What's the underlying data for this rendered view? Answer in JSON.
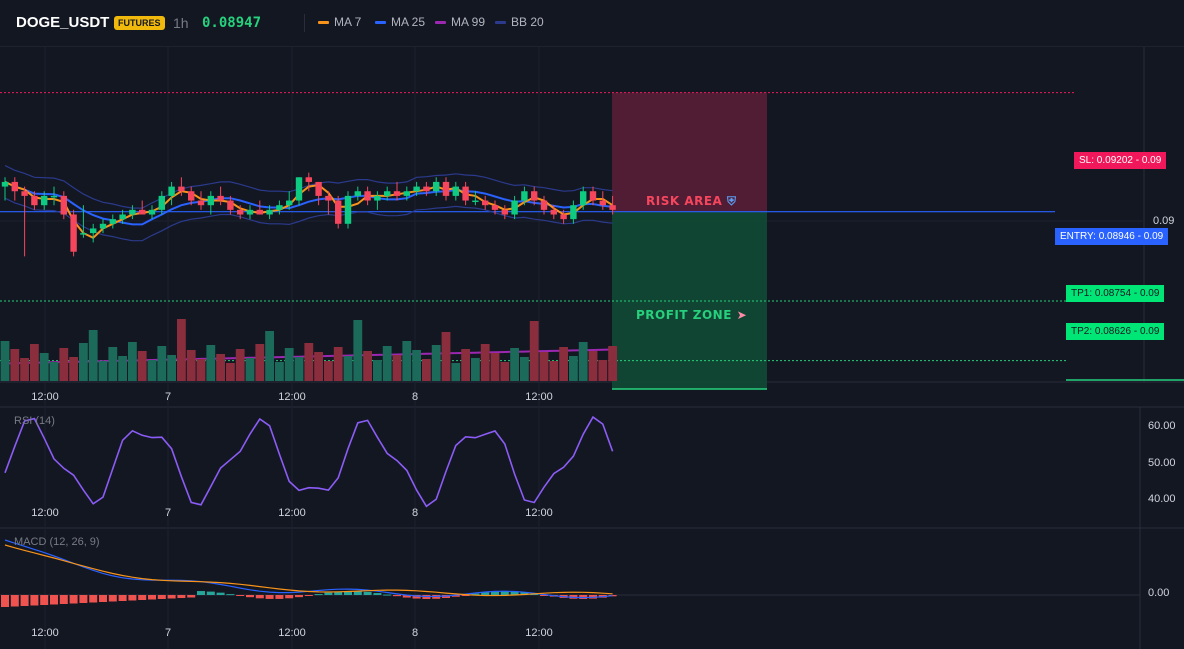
{
  "header": {
    "symbol": "DOGE_USDT",
    "badge": "FUTURES",
    "timeframe": "1h",
    "last_price": "0.08947",
    "legend": [
      {
        "label": "MA 7",
        "color": "#f7931a"
      },
      {
        "label": "MA 25",
        "color": "#2962ff"
      },
      {
        "label": "MA 99",
        "color": "#9c27b0"
      },
      {
        "label": "BB 20",
        "color": "#2b3a8c"
      }
    ]
  },
  "colors": {
    "up": "#0ecb81",
    "down": "#f6465d",
    "risk": "#7a1f3d",
    "profit": "#0f5a3c"
  },
  "annotations": {
    "risk_label": "RISK AREA",
    "risk_icon": "shield-icon",
    "profit_label": "PROFIT ZONE",
    "profit_icon": "rocket-icon"
  },
  "price_labels": {
    "sl": "SL: 0.09202",
    "entry": "ENTRY: 0.08946",
    "tp1": "TP1: 0.08754",
    "tp2": "TP2: 0.08626",
    "sl_val": "0.09",
    "entry_val": "0.09",
    "tp1_val": "0.09",
    "tp2_val": "0.09",
    "axis_tick": "0.09"
  },
  "panes": {
    "rsi_title": "RSI (14)",
    "macd_title": "MACD (12, 26, 9)"
  },
  "chart_data": {
    "type": "candlestick",
    "time_labels": [
      "12:00",
      "7",
      "12:00",
      "8",
      "12:00"
    ],
    "price_levels": {
      "sl": 0.09202,
      "entry": 0.08946,
      "tp1": 0.08754,
      "tp2": 0.08626
    },
    "candles": [
      [
        0.09,
        0.0902,
        0.0897,
        0.0901
      ],
      [
        0.0901,
        0.0902,
        0.0897,
        0.0899
      ],
      [
        0.0899,
        0.09,
        0.0885,
        0.0898
      ],
      [
        0.0898,
        0.0899,
        0.0895,
        0.0896
      ],
      [
        0.0896,
        0.0899,
        0.0895,
        0.0898
      ],
      [
        0.0898,
        0.09,
        0.0896,
        0.0898
      ],
      [
        0.0898,
        0.0899,
        0.0893,
        0.0894
      ],
      [
        0.0894,
        0.0895,
        0.0885,
        0.0886
      ],
      [
        0.089,
        0.0896,
        0.0889,
        0.089
      ],
      [
        0.089,
        0.0892,
        0.0888,
        0.0891
      ],
      [
        0.0891,
        0.0893,
        0.089,
        0.0892
      ],
      [
        0.0892,
        0.0894,
        0.0891,
        0.0893
      ],
      [
        0.0893,
        0.0895,
        0.0892,
        0.0894
      ],
      [
        0.0894,
        0.0896,
        0.0893,
        0.0895
      ],
      [
        0.0895,
        0.0897,
        0.0894,
        0.0894
      ],
      [
        0.0894,
        0.0896,
        0.0893,
        0.0895
      ],
      [
        0.0895,
        0.0899,
        0.0894,
        0.0898
      ],
      [
        0.0898,
        0.0901,
        0.0896,
        0.09
      ],
      [
        0.09,
        0.0902,
        0.0898,
        0.0899
      ],
      [
        0.0899,
        0.09,
        0.0896,
        0.0897
      ],
      [
        0.0897,
        0.0899,
        0.0895,
        0.0896
      ],
      [
        0.0896,
        0.0899,
        0.0894,
        0.0898
      ],
      [
        0.0898,
        0.09,
        0.0896,
        0.0897
      ],
      [
        0.0897,
        0.0898,
        0.0894,
        0.0895
      ],
      [
        0.0895,
        0.0896,
        0.0893,
        0.0894
      ],
      [
        0.0894,
        0.0896,
        0.0893,
        0.0895
      ],
      [
        0.0895,
        0.0897,
        0.0894,
        0.0894
      ],
      [
        0.0894,
        0.0896,
        0.0893,
        0.0895
      ],
      [
        0.0895,
        0.0897,
        0.0894,
        0.0896
      ],
      [
        0.0896,
        0.0899,
        0.0895,
        0.0897
      ],
      [
        0.0897,
        0.0902,
        0.0896,
        0.0902
      ],
      [
        0.0902,
        0.0903,
        0.0899,
        0.0901
      ],
      [
        0.0901,
        0.0901,
        0.0896,
        0.0898
      ],
      [
        0.0898,
        0.0899,
        0.0894,
        0.0897
      ],
      [
        0.0897,
        0.0898,
        0.0891,
        0.0892
      ],
      [
        0.0892,
        0.0899,
        0.0891,
        0.0898
      ],
      [
        0.0898,
        0.09,
        0.0897,
        0.0899
      ],
      [
        0.0899,
        0.09,
        0.0896,
        0.0897
      ],
      [
        0.0897,
        0.0899,
        0.0895,
        0.0898
      ],
      [
        0.0898,
        0.09,
        0.0897,
        0.0899
      ],
      [
        0.0899,
        0.0901,
        0.0897,
        0.0898
      ],
      [
        0.0898,
        0.09,
        0.0897,
        0.0899
      ],
      [
        0.0899,
        0.0901,
        0.0898,
        0.09
      ],
      [
        0.09,
        0.0901,
        0.0898,
        0.0899
      ],
      [
        0.0899,
        0.0902,
        0.0898,
        0.0901
      ],
      [
        0.0901,
        0.0902,
        0.0897,
        0.0898
      ],
      [
        0.0898,
        0.0901,
        0.0897,
        0.09
      ],
      [
        0.09,
        0.0901,
        0.0896,
        0.0897
      ],
      [
        0.0897,
        0.0899,
        0.0896,
        0.0897
      ],
      [
        0.0897,
        0.0898,
        0.0895,
        0.0896
      ],
      [
        0.0896,
        0.0897,
        0.0894,
        0.0895
      ],
      [
        0.0895,
        0.0896,
        0.0893,
        0.0894
      ],
      [
        0.0894,
        0.0898,
        0.0893,
        0.0897
      ],
      [
        0.0897,
        0.09,
        0.0896,
        0.0899
      ],
      [
        0.0899,
        0.09,
        0.0896,
        0.0897
      ],
      [
        0.0897,
        0.0898,
        0.0894,
        0.0895
      ],
      [
        0.0895,
        0.0896,
        0.0893,
        0.0894
      ],
      [
        0.0894,
        0.0895,
        0.0892,
        0.0893
      ],
      [
        0.0893,
        0.0897,
        0.0892,
        0.0896
      ],
      [
        0.0896,
        0.09,
        0.0895,
        0.0899
      ],
      [
        0.0899,
        0.09,
        0.0896,
        0.0897
      ],
      [
        0.0897,
        0.0899,
        0.0895,
        0.0896
      ],
      [
        0.0896,
        0.0898,
        0.0894,
        0.0895
      ]
    ],
    "rsi_axis": [
      60,
      50,
      40
    ],
    "rsi_axis_labels": [
      "60.00",
      "50.00",
      "40.00"
    ],
    "macd_axis_label": "0.00"
  }
}
